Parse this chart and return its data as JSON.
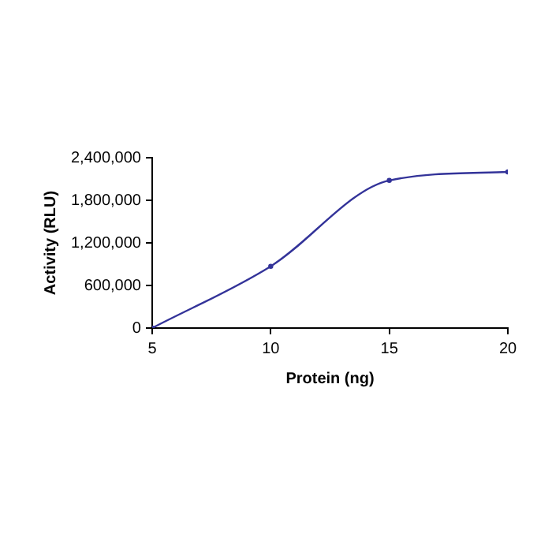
{
  "chart_data": {
    "type": "line",
    "xlabel": "Protein (ng)",
    "ylabel": "Activity (RLU)",
    "x": [
      5,
      10,
      15,
      20
    ],
    "series": [
      {
        "color": "#333399",
        "values": [
          0,
          870000,
          2080000,
          2200000
        ]
      }
    ],
    "xlim": [
      5,
      20
    ],
    "xticks": [
      5,
      10,
      15,
      20
    ],
    "ylim": [
      0,
      2400000
    ],
    "yticks": [
      0,
      {
        "value": 600000,
        "label": "600,000"
      },
      {
        "value": 1200000,
        "label": "1,200,000"
      },
      {
        "value": 1800000,
        "label": "1,800,000"
      },
      {
        "value": 2400000,
        "label": "2,400,000"
      }
    ],
    "grid": false,
    "legend": false,
    "marker": "circle",
    "line_style": "solid"
  }
}
